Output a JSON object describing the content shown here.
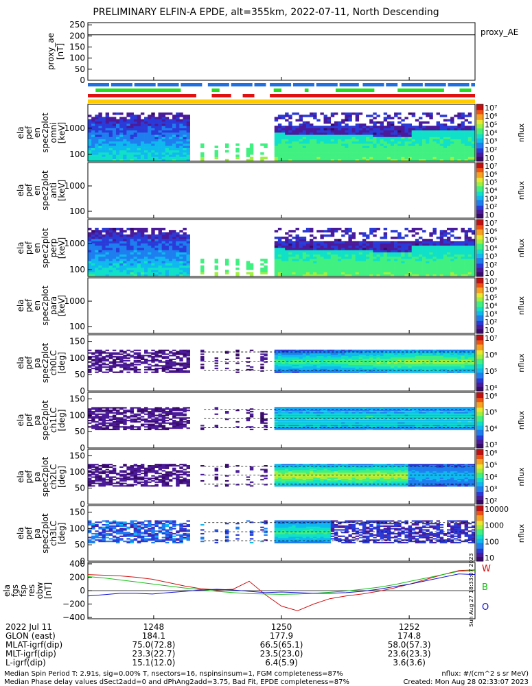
{
  "title": "PRELIMINARY ELFIN-A EPDE, alt=355km, 2022-07-11, North Descending",
  "colors": {
    "bar_blue": "#1f6fe0",
    "bar_green": "#22dd22",
    "bar_red": "#e01010",
    "bar_yellow": "#ffcc00",
    "wave_w": "#d01010",
    "wave_b": "#10c010",
    "wave_o": "#1010d0"
  },
  "chart_data": [
    {
      "type": "line",
      "id": "proxy_ae",
      "ylabel_lines": [
        "proxy_ae",
        "[nT]"
      ],
      "yticks": [
        "250",
        "200",
        "150",
        "100",
        "50",
        "0"
      ],
      "ylim": [
        0,
        260
      ],
      "series": [
        {
          "name": "proxy_AE",
          "values": [
            205,
            205
          ]
        }
      ]
    },
    {
      "type": "heatmap",
      "id": "omni",
      "ylabel_lines": [
        "ela",
        "pef",
        "en",
        "spec2plot",
        "omni",
        "[keV]"
      ],
      "yticks": [
        "1000",
        "100"
      ],
      "colorbar_ticks": [
        "10⁷",
        "10⁶",
        "10⁵",
        "10⁴",
        "10³",
        "10²",
        "10"
      ],
      "colorbar_label": "nflux"
    },
    {
      "type": "heatmap",
      "id": "anti",
      "ylabel_lines": [
        "ela",
        "pef",
        "en",
        "spec2plot",
        "anti",
        "[keV]"
      ],
      "yticks": [
        "1000",
        "100"
      ],
      "colorbar_ticks": [
        "10⁷",
        "10⁶",
        "10⁵",
        "10⁴",
        "10³",
        "10²",
        "10"
      ],
      "colorbar_label": "nflux"
    },
    {
      "type": "heatmap",
      "id": "perp",
      "ylabel_lines": [
        "ela",
        "pef",
        "en",
        "spec2plot",
        "perp",
        "[keV]"
      ],
      "yticks": [
        "1000",
        "100"
      ],
      "colorbar_ticks": [
        "10⁷",
        "10⁶",
        "10⁵",
        "10⁴",
        "10³",
        "10²",
        "10"
      ],
      "colorbar_label": "nflux"
    },
    {
      "type": "heatmap",
      "id": "para",
      "ylabel_lines": [
        "ela",
        "pef",
        "en",
        "spec2plot",
        "para",
        "[keV]"
      ],
      "yticks": [
        "1000",
        "100"
      ],
      "colorbar_ticks": [
        "10⁷",
        "10⁶",
        "10⁵",
        "10⁴",
        "10³",
        "10²",
        "10"
      ],
      "colorbar_label": "nflux"
    },
    {
      "type": "heatmap",
      "id": "ch0LC",
      "ylabel_lines": [
        "ela",
        "pef",
        "pa",
        "spec2plot",
        "ch0LC",
        "[deg]"
      ],
      "yticks": [
        "150",
        "100",
        "50",
        "0"
      ],
      "colorbar_ticks": [
        "10⁷",
        "10⁶",
        "10⁵",
        "10⁴"
      ],
      "colorbar_label": "nflux"
    },
    {
      "type": "heatmap",
      "id": "ch1LC",
      "ylabel_lines": [
        "ela",
        "pef",
        "pa",
        "spec2plot",
        "ch1LC",
        "[deg]"
      ],
      "yticks": [
        "150",
        "100",
        "50",
        "0"
      ],
      "colorbar_ticks": [
        "10⁶",
        "10⁵",
        "10⁴",
        "10³"
      ],
      "colorbar_label": "nflux"
    },
    {
      "type": "heatmap",
      "id": "ch2LC",
      "ylabel_lines": [
        "ela",
        "pef",
        "pa",
        "spec2plot",
        "ch2LC",
        "[deg]"
      ],
      "yticks": [
        "150",
        "100",
        "50",
        "0"
      ],
      "colorbar_ticks": [
        "10⁶",
        "10⁵",
        "10⁴",
        "10³",
        "10²"
      ],
      "colorbar_label": "nflux"
    },
    {
      "type": "heatmap",
      "id": "ch3LC",
      "ylabel_lines": [
        "ela",
        "pef",
        "pa",
        "spec2plot",
        "ch3LC",
        "[deg]"
      ],
      "yticks": [
        "150",
        "100",
        "50",
        "0"
      ],
      "colorbar_ticks": [
        "10000",
        "1000",
        "100",
        "10"
      ],
      "colorbar_label": "nflux"
    },
    {
      "type": "line",
      "id": "fgs",
      "ylabel_lines": [
        "ela",
        "fgs",
        "fsp",
        "res",
        "obw",
        "[nT]"
      ],
      "yticks": [
        "400",
        "200",
        "0",
        "−200",
        "−400"
      ],
      "ylim": [
        -420,
        420
      ],
      "legend": [
        "W",
        "B",
        "O"
      ],
      "vertical_text": "Sun Aug 27 18:33:07 2023",
      "series": [
        {
          "name": "W",
          "values": [
            240,
            230,
            220,
            200,
            170,
            120,
            70,
            30,
            10,
            20,
            140,
            -60,
            -230,
            -300,
            -200,
            -120,
            -80,
            -50,
            -10,
            40,
            100,
            170,
            240,
            300,
            310
          ]
        },
        {
          "name": "B",
          "values": [
            210,
            190,
            160,
            130,
            100,
            70,
            40,
            15,
            -10,
            -30,
            -45,
            -50,
            -55,
            -50,
            -40,
            -25,
            -5,
            20,
            50,
            90,
            140,
            190,
            240,
            290,
            300
          ]
        },
        {
          "name": "O",
          "values": [
            -80,
            -60,
            -40,
            -40,
            -50,
            -30,
            -10,
            10,
            20,
            10,
            -10,
            -30,
            -20,
            -30,
            -40,
            -40,
            -30,
            -10,
            20,
            60,
            100,
            150,
            200,
            250,
            240
          ]
        }
      ]
    }
  ],
  "xaxis": {
    "ticks": [
      "1248",
      "1250",
      "1252"
    ],
    "rows": [
      {
        "label": "2022 Jul 11",
        "values": [
          "1248",
          "1250",
          "1252"
        ]
      },
      {
        "label": "GLON (east)",
        "values": [
          "184.1",
          "177.9",
          "174.8"
        ]
      },
      {
        "label": "MLAT-igrf(dip)",
        "values": [
          "75.0(72.8)",
          "66.5(65.1)",
          "58.0(57.3)"
        ]
      },
      {
        "label": "MLT-igrf(dip)",
        "values": [
          "23.3(22.7)",
          "23.5(23.0)",
          "23.6(23.3)"
        ]
      },
      {
        "label": "L-igrf(dip)",
        "values": [
          "15.1(12.0)",
          "6.4(5.9)",
          "3.6(3.6)"
        ]
      }
    ]
  },
  "footer": {
    "line1_left": "Median Spin Period T: 2.91s, sig=0.00% T, nsectors=16, nspinsinsum=1, FGM completeness=87%",
    "line2_left": "Median Phase delay values dSect2add=0 and dPhAng2add=3.75, Bad Fit, EPDE completeness=87%",
    "line1_right": "nflux: #/(cm^2 s sr MeV)",
    "line2_right": "Created: Mon Aug 28 02:33:07 2023"
  }
}
